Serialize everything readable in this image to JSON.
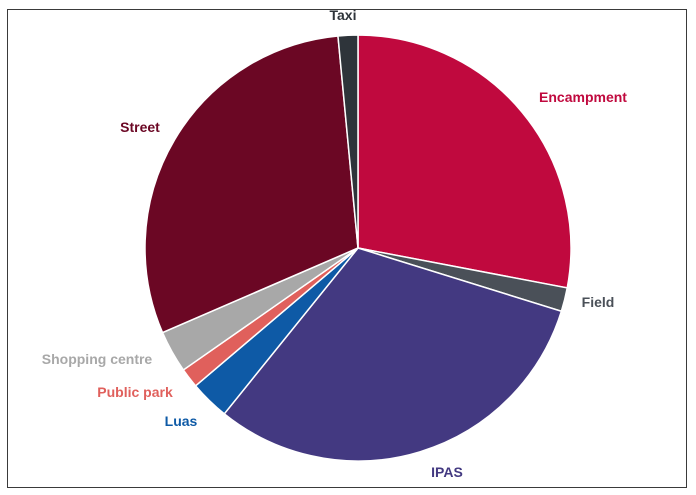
{
  "chart_data": {
    "type": "pie",
    "title": "",
    "legend": "none",
    "start_angle_deg": 0,
    "direction": "clockwise",
    "slices": [
      {
        "label": "Encampment",
        "value": 28.0,
        "color": "#c0093e"
      },
      {
        "label": "Field",
        "value": 1.8,
        "color": "#4a5058"
      },
      {
        "label": "IPAS",
        "value": 31.0,
        "color": "#433981"
      },
      {
        "label": "Luas",
        "value": 3.0,
        "color": "#0e5aa6"
      },
      {
        "label": "Public park",
        "value": 1.5,
        "color": "#e0605c"
      },
      {
        "label": "Shopping centre",
        "value": 3.2,
        "color": "#a8a8a8"
      },
      {
        "label": "Street",
        "value": 30.0,
        "color": "#6b0724"
      },
      {
        "label": "Taxi",
        "value": 1.5,
        "color": "#2e343a"
      }
    ]
  }
}
